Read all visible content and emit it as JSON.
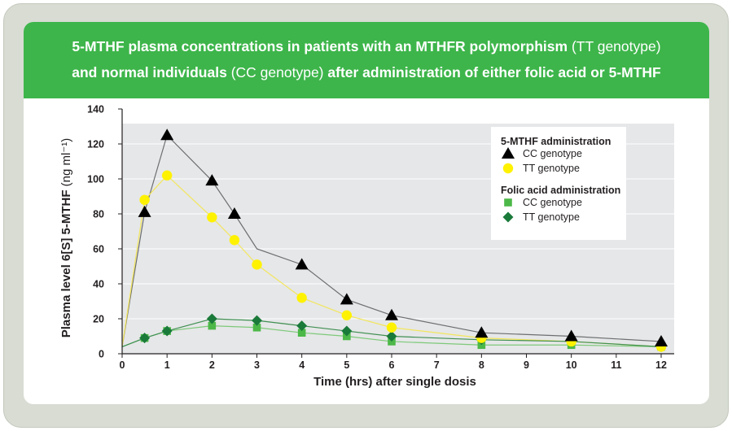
{
  "title": {
    "line1_bold": "5-MTHF plasma concentrations in patients with an MTHFR polymorphism",
    "line1_normal": "(TT genotype)",
    "line2_bold_a": "and normal individuals",
    "line2_normal": "(CC genotype)",
    "line2_bold_b": "after administration of either folic acid or 5-MTHF"
  },
  "colors": {
    "banner": "#3db54a",
    "plot_bg": "#e6e7e8",
    "cc_5mthf": "#000000",
    "tt_5mthf": "#fff200",
    "cc_folic": "#4cb848",
    "tt_folic": "#1a7a3a",
    "line_5mthf_cc": "#6d6e71",
    "line_5mthf_tt": "#f2e65c",
    "line_folic_cc": "#7dc97a",
    "line_folic_tt": "#3f8f52"
  },
  "chart_data": {
    "type": "scatter",
    "xlabel": "Time (hrs) after single dosis",
    "ylabel": "Plasma level 6[S] 5-MTHF (ng ml⁻¹)",
    "xlim": [
      0,
      12
    ],
    "ylim": [
      0,
      140
    ],
    "xticks": [
      "0",
      "1",
      "2",
      "3",
      "4",
      "5",
      "6",
      "7",
      "8",
      "9",
      "10",
      "11",
      "12"
    ],
    "yticks": [
      "0",
      "20",
      "40",
      "60",
      "80",
      "100",
      "120",
      "140"
    ],
    "grid": "horizontal",
    "legend": {
      "placement": "top-right",
      "group1": "5-MTHF administration",
      "group2": "Folic acid administration"
    },
    "series": [
      {
        "name": "CC genotype",
        "group": "5-MTHF administration",
        "marker": "triangle",
        "points": [
          [
            0.5,
            81
          ],
          [
            1,
            125
          ],
          [
            2,
            99
          ],
          [
            2.5,
            80
          ],
          [
            4,
            51
          ],
          [
            5,
            31
          ],
          [
            6,
            22
          ],
          [
            8,
            12
          ],
          [
            10,
            10
          ],
          [
            12,
            7
          ]
        ],
        "line": [
          [
            0,
            4
          ],
          [
            0.5,
            81
          ],
          [
            1,
            125
          ],
          [
            2,
            99
          ],
          [
            2.5,
            80
          ],
          [
            3,
            60
          ],
          [
            4,
            51
          ],
          [
            5,
            31
          ],
          [
            6,
            22
          ],
          [
            8,
            12
          ],
          [
            10,
            10
          ],
          [
            12,
            7
          ]
        ]
      },
      {
        "name": "TT genotype",
        "group": "5-MTHF administration",
        "marker": "circle",
        "points": [
          [
            0.5,
            88
          ],
          [
            1,
            102
          ],
          [
            2,
            78
          ],
          [
            2.5,
            65
          ],
          [
            3,
            51
          ],
          [
            4,
            32
          ],
          [
            5,
            22
          ],
          [
            6,
            15
          ],
          [
            8,
            9
          ],
          [
            10,
            7
          ],
          [
            12,
            4
          ]
        ],
        "line": [
          [
            0,
            4
          ],
          [
            0.5,
            88
          ],
          [
            1,
            102
          ],
          [
            2,
            78
          ],
          [
            2.5,
            65
          ],
          [
            3,
            51
          ],
          [
            4,
            32
          ],
          [
            5,
            22
          ],
          [
            6,
            15
          ],
          [
            8,
            9
          ],
          [
            10,
            7
          ],
          [
            12,
            4
          ]
        ]
      },
      {
        "name": "CC genotype",
        "group": "Folic acid administration",
        "marker": "square",
        "points": [
          [
            0.5,
            9
          ],
          [
            1,
            13
          ],
          [
            2,
            16
          ],
          [
            3,
            15
          ],
          [
            4,
            12
          ],
          [
            5,
            10
          ],
          [
            6,
            7
          ],
          [
            8,
            5
          ],
          [
            10,
            5
          ],
          [
            12,
            4
          ]
        ],
        "line": [
          [
            0,
            4
          ],
          [
            0.5,
            9
          ],
          [
            1,
            13
          ],
          [
            2,
            16
          ],
          [
            3,
            15
          ],
          [
            4,
            12
          ],
          [
            5,
            10
          ],
          [
            6,
            7
          ],
          [
            8,
            5
          ],
          [
            10,
            5
          ],
          [
            12,
            4
          ]
        ]
      },
      {
        "name": "TT genotype",
        "group": "Folic acid administration",
        "marker": "diamond",
        "points": [
          [
            0.5,
            9
          ],
          [
            1,
            13
          ],
          [
            2,
            20
          ],
          [
            3,
            19
          ],
          [
            4,
            16
          ],
          [
            5,
            13
          ],
          [
            6,
            10
          ],
          [
            8,
            8
          ],
          [
            10,
            7
          ],
          [
            12,
            4
          ]
        ],
        "line": [
          [
            0,
            4
          ],
          [
            0.5,
            9
          ],
          [
            1,
            13
          ],
          [
            2,
            20
          ],
          [
            3,
            19
          ],
          [
            4,
            16
          ],
          [
            5,
            13
          ],
          [
            6,
            10
          ],
          [
            8,
            8
          ],
          [
            10,
            7
          ],
          [
            12,
            4
          ]
        ]
      }
    ]
  }
}
